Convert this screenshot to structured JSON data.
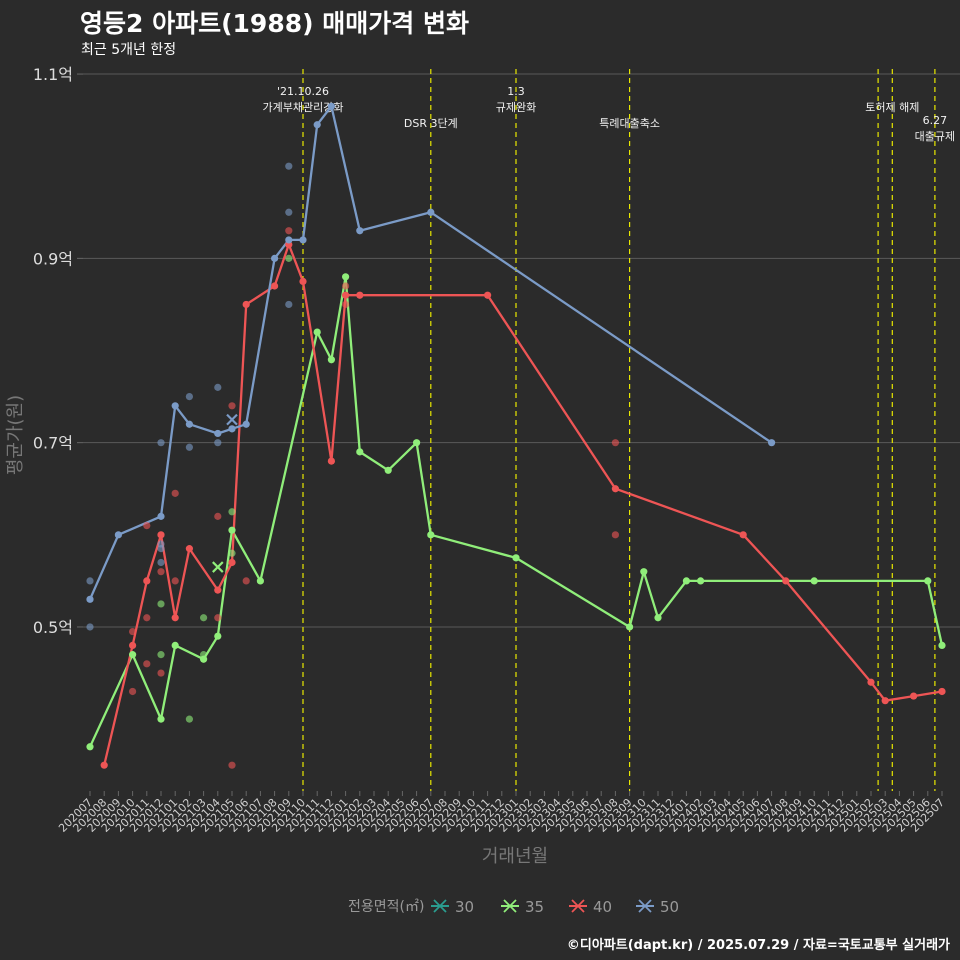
{
  "title": "영등2 아파트(1988) 매매가격 변화",
  "subtitle": "최근 5개년 한정",
  "caption": "©디아파트(dapt.kr) / 2025.07.29 / 자료=국토교통부 실거래가",
  "colors": {
    "s30": "#2a9d8f",
    "s35": "#90ee7a",
    "s40": "#ee5555",
    "s50": "#7b9bc7",
    "event_line": "#e8e800"
  },
  "chart_data": {
    "type": "line",
    "title": "영등2 아파트(1988) 매매가격 변화",
    "xlabel": "거래년월",
    "ylabel": "평균가(원)",
    "ylim": [
      0.322,
      1.112
    ],
    "y_ticks": [
      {
        "v": 0.5,
        "label": "0.5억"
      },
      {
        "v": 0.7,
        "label": "0.7억"
      },
      {
        "v": 0.9,
        "label": "0.9억"
      },
      {
        "v": 1.1,
        "label": "1.1억"
      }
    ],
    "x_labels": [
      "202007",
      "202008",
      "202009",
      "202010",
      "202011",
      "202012",
      "202101",
      "202102",
      "202103",
      "202104",
      "202105",
      "202106",
      "202107",
      "202108",
      "202109",
      "202110",
      "202111",
      "202112",
      "202201",
      "202202",
      "202203",
      "202204",
      "202205",
      "202206",
      "202207",
      "202208",
      "202209",
      "202210",
      "202211",
      "202212",
      "202301",
      "202302",
      "202303",
      "202304",
      "202305",
      "202306",
      "202307",
      "202308",
      "202309",
      "202310",
      "202311",
      "202312",
      "202401",
      "202402",
      "202403",
      "202404",
      "202405",
      "202406",
      "202407",
      "202408",
      "202409",
      "202410",
      "202411",
      "202412",
      "202501",
      "202502",
      "202503",
      "202504",
      "202505",
      "202506",
      "202507"
    ],
    "legend": {
      "title": "전용면적(㎡)",
      "items": [
        {
          "name": "30",
          "key": "s30"
        },
        {
          "name": "35",
          "key": "s35"
        },
        {
          "name": "40",
          "key": "s40"
        },
        {
          "name": "50",
          "key": "s50"
        }
      ]
    },
    "events": [
      {
        "x": 15,
        "lines": [
          "'21.10.26",
          "가계부채관리강화"
        ],
        "row": 0
      },
      {
        "x": 24,
        "lines": [
          "DSR 3단계"
        ],
        "row": 2
      },
      {
        "x": 30,
        "lines": [
          "1.3",
          "규제완화"
        ],
        "row": 0
      },
      {
        "x": 38,
        "lines": [
          "특례대출축소"
        ],
        "row": 2
      },
      {
        "x": 55.5,
        "lines": [],
        "row": 1
      },
      {
        "x": 56.5,
        "lines": [
          "토허제 해제"
        ],
        "row": 1
      },
      {
        "x": 59.5,
        "lines": [
          "6.27",
          "대출규제"
        ],
        "row": 1.8
      }
    ],
    "series": [
      {
        "name": "35",
        "key": "s35",
        "x": [
          0,
          3,
          5,
          6,
          8,
          9,
          10,
          12,
          16,
          17,
          18,
          19,
          21,
          23,
          24,
          30,
          38,
          39,
          40,
          42,
          43,
          51,
          59,
          60
        ],
        "y": [
          0.37,
          0.47,
          0.4,
          0.48,
          0.465,
          0.49,
          0.605,
          0.55,
          0.82,
          0.79,
          0.88,
          0.69,
          0.67,
          0.7,
          0.6,
          0.575,
          0.5,
          0.56,
          0.51,
          0.55,
          0.55,
          0.55,
          0.55,
          0.48
        ]
      },
      {
        "name": "40",
        "key": "s40",
        "x": [
          1,
          3,
          4,
          5,
          6,
          7,
          9,
          10,
          11,
          13,
          14,
          15,
          17,
          18,
          19,
          28,
          37,
          46,
          49,
          55,
          56,
          58,
          60
        ],
        "y": [
          0.35,
          0.48,
          0.55,
          0.6,
          0.51,
          0.585,
          0.54,
          0.57,
          0.85,
          0.87,
          0.915,
          0.875,
          0.68,
          0.86,
          0.86,
          0.86,
          0.65,
          0.6,
          0.55,
          0.44,
          0.42,
          0.425,
          0.43
        ]
      },
      {
        "name": "50",
        "key": "s50",
        "x": [
          0,
          2,
          5,
          6,
          7,
          9,
          10,
          11,
          13,
          14,
          15,
          16,
          17,
          19,
          24,
          48
        ],
        "y": [
          0.53,
          0.6,
          0.62,
          0.74,
          0.72,
          0.71,
          0.715,
          0.72,
          0.9,
          0.92,
          0.92,
          1.045,
          1.065,
          0.93,
          0.95,
          0.7
        ]
      }
    ],
    "scatter": [
      {
        "x": 0,
        "y": 0.55,
        "key": "s50"
      },
      {
        "x": 0,
        "y": 0.5,
        "key": "s50"
      },
      {
        "x": 3,
        "y": 0.495,
        "key": "s40"
      },
      {
        "x": 3,
        "y": 0.43,
        "key": "s40"
      },
      {
        "x": 4,
        "y": 0.61,
        "key": "s40"
      },
      {
        "x": 4,
        "y": 0.51,
        "key": "s40"
      },
      {
        "x": 4,
        "y": 0.46,
        "key": "s40"
      },
      {
        "x": 5,
        "y": 0.7,
        "key": "s50"
      },
      {
        "x": 5,
        "y": 0.585,
        "key": "s50"
      },
      {
        "x": 5,
        "y": 0.59,
        "key": "s50"
      },
      {
        "x": 5,
        "y": 0.57,
        "key": "s50"
      },
      {
        "x": 5,
        "y": 0.56,
        "key": "s40"
      },
      {
        "x": 5,
        "y": 0.525,
        "key": "s35"
      },
      {
        "x": 5,
        "y": 0.47,
        "key": "s35"
      },
      {
        "x": 5,
        "y": 0.45,
        "key": "s40"
      },
      {
        "x": 6,
        "y": 0.645,
        "key": "s40"
      },
      {
        "x": 6,
        "y": 0.55,
        "key": "s40"
      },
      {
        "x": 7,
        "y": 0.75,
        "key": "s50"
      },
      {
        "x": 7,
        "y": 0.695,
        "key": "s50"
      },
      {
        "x": 7,
        "y": 0.4,
        "key": "s35"
      },
      {
        "x": 8,
        "y": 0.51,
        "key": "s35"
      },
      {
        "x": 8,
        "y": 0.47,
        "key": "s35"
      },
      {
        "x": 9,
        "y": 0.76,
        "key": "s50"
      },
      {
        "x": 9,
        "y": 0.7,
        "key": "s50"
      },
      {
        "x": 9,
        "y": 0.62,
        "key": "s40"
      },
      {
        "x": 9,
        "y": 0.51,
        "key": "s40"
      },
      {
        "x": 10,
        "y": 0.74,
        "key": "s40"
      },
      {
        "x": 10,
        "y": 0.625,
        "key": "s35"
      },
      {
        "x": 10,
        "y": 0.58,
        "key": "s35"
      },
      {
        "x": 10,
        "y": 0.35,
        "key": "s40"
      },
      {
        "x": 11,
        "y": 0.55,
        "key": "s40"
      },
      {
        "x": 14,
        "y": 1.0,
        "key": "s50"
      },
      {
        "x": 14,
        "y": 0.95,
        "key": "s50"
      },
      {
        "x": 14,
        "y": 0.93,
        "key": "s40"
      },
      {
        "x": 14,
        "y": 0.9,
        "key": "s35"
      },
      {
        "x": 14,
        "y": 0.85,
        "key": "s50"
      },
      {
        "x": 18,
        "y": 0.87,
        "key": "s40"
      },
      {
        "x": 18,
        "y": 0.85,
        "key": "s40"
      },
      {
        "x": 37,
        "y": 0.7,
        "key": "s40"
      },
      {
        "x": 37,
        "y": 0.6,
        "key": "s40"
      }
    ],
    "crosses": [
      {
        "x": 9,
        "y": 0.565,
        "key": "s35"
      },
      {
        "x": 10,
        "y": 0.725,
        "key": "s50"
      }
    ]
  }
}
